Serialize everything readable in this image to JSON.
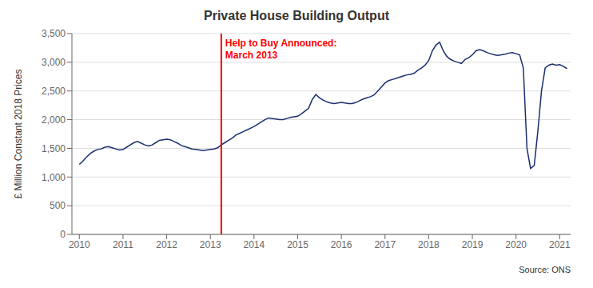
{
  "chart_data": {
    "type": "line",
    "title": "Private House Building Output",
    "y_label": "£ Million Constant 2018 Prices",
    "source": "Source: ONS",
    "annotations": [
      {
        "text": "Help to Buy Announced:\nMarch 2013",
        "x": 2013.25,
        "color": "red"
      }
    ],
    "color": "#1a2f6e",
    "xlim": [
      2009.83,
      2021.25
    ],
    "ylim": [
      0,
      3500
    ],
    "xticks": [
      2010,
      2011,
      2012,
      2013,
      2014,
      2015,
      2016,
      2017,
      2018,
      2019,
      2020,
      2021
    ],
    "yticks": [
      0,
      500,
      {
        "value": 1000,
        "label": "1,000"
      },
      {
        "value": 1500,
        "label": "1,500"
      },
      {
        "value": 2000,
        "label": "2,000"
      },
      {
        "value": 2500,
        "label": "2,500"
      },
      {
        "value": 3000,
        "label": "3,000"
      },
      {
        "value": 3500,
        "label": "3,500"
      }
    ],
    "grid": "y",
    "x": [
      2010.0,
      2010.083,
      2010.167,
      2010.25,
      2010.333,
      2010.417,
      2010.5,
      2010.583,
      2010.667,
      2010.75,
      2010.833,
      2010.917,
      2011.0,
      2011.083,
      2011.167,
      2011.25,
      2011.333,
      2011.417,
      2011.5,
      2011.583,
      2011.667,
      2011.75,
      2011.833,
      2011.917,
      2012.0,
      2012.083,
      2012.167,
      2012.25,
      2012.333,
      2012.417,
      2012.5,
      2012.583,
      2012.667,
      2012.75,
      2012.833,
      2012.917,
      2013.0,
      2013.083,
      2013.167,
      2013.25,
      2013.333,
      2013.417,
      2013.5,
      2013.583,
      2013.667,
      2013.75,
      2013.833,
      2013.917,
      2014.0,
      2014.083,
      2014.167,
      2014.25,
      2014.333,
      2014.417,
      2014.5,
      2014.583,
      2014.667,
      2014.75,
      2014.833,
      2014.917,
      2015.0,
      2015.083,
      2015.167,
      2015.25,
      2015.333,
      2015.417,
      2015.5,
      2015.583,
      2015.667,
      2015.75,
      2015.833,
      2015.917,
      2016.0,
      2016.083,
      2016.167,
      2016.25,
      2016.333,
      2016.417,
      2016.5,
      2016.583,
      2016.667,
      2016.75,
      2016.833,
      2016.917,
      2017.0,
      2017.083,
      2017.167,
      2017.25,
      2017.333,
      2017.417,
      2017.5,
      2017.583,
      2017.667,
      2017.75,
      2017.833,
      2017.917,
      2018.0,
      2018.083,
      2018.167,
      2018.25,
      2018.333,
      2018.417,
      2018.5,
      2018.583,
      2018.667,
      2018.75,
      2018.833,
      2018.917,
      2019.0,
      2019.083,
      2019.167,
      2019.25,
      2019.333,
      2019.417,
      2019.5,
      2019.583,
      2019.667,
      2019.75,
      2019.833,
      2019.917,
      2020.0,
      2020.083,
      2020.167,
      2020.25,
      2020.333,
      2020.417,
      2020.5,
      2020.583,
      2020.667,
      2020.75,
      2020.833,
      2020.917,
      2021.0,
      2021.083,
      2021.167
    ],
    "values": [
      1220,
      1280,
      1350,
      1410,
      1450,
      1480,
      1490,
      1520,
      1530,
      1510,
      1490,
      1470,
      1480,
      1520,
      1560,
      1600,
      1620,
      1590,
      1560,
      1540,
      1560,
      1600,
      1640,
      1650,
      1660,
      1650,
      1620,
      1590,
      1550,
      1530,
      1510,
      1490,
      1480,
      1470,
      1460,
      1470,
      1480,
      1490,
      1510,
      1560,
      1600,
      1640,
      1680,
      1730,
      1760,
      1790,
      1820,
      1850,
      1880,
      1920,
      1960,
      2000,
      2030,
      2020,
      2010,
      2000,
      2000,
      2020,
      2040,
      2050,
      2060,
      2100,
      2150,
      2200,
      2350,
      2440,
      2380,
      2340,
      2310,
      2290,
      2280,
      2290,
      2300,
      2290,
      2280,
      2280,
      2300,
      2330,
      2360,
      2380,
      2400,
      2430,
      2500,
      2570,
      2640,
      2680,
      2700,
      2720,
      2740,
      2760,
      2780,
      2790,
      2810,
      2860,
      2900,
      2950,
      3030,
      3200,
      3300,
      3350,
      3200,
      3100,
      3050,
      3020,
      3000,
      2980,
      3050,
      3080,
      3130,
      3200,
      3220,
      3200,
      3170,
      3150,
      3130,
      3120,
      3130,
      3140,
      3160,
      3170,
      3150,
      3130,
      2900,
      1500,
      1150,
      1200,
      1800,
      2500,
      2900,
      2950,
      2970,
      2950,
      2960,
      2930,
      2890
    ]
  }
}
